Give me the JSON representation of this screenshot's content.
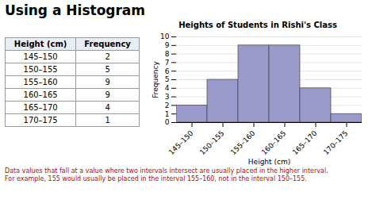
{
  "chart_data": {
    "type": "bar",
    "title": "Using a Histogram",
    "subtitle": "Heights of Students in Rishi's Class",
    "xlabel": "Height (cm)",
    "ylabel": "Frequency",
    "categories": [
      "145–150",
      "150–155",
      "155–160",
      "160–165",
      "165–170",
      "170–175"
    ],
    "values": [
      2,
      5,
      9,
      9,
      4,
      1
    ],
    "color": "#9999cc",
    "ylim": [
      0,
      10
    ],
    "yticks": [
      0,
      1,
      2,
      3,
      4,
      5,
      6,
      7,
      8,
      9,
      10
    ],
    "grid": true,
    "table": {
      "columns": [
        "Height (cm)",
        "Frequency"
      ],
      "rows": [
        [
          "145–150",
          "2"
        ],
        [
          "150–155",
          "5"
        ],
        [
          "155–160",
          "9"
        ],
        [
          "160–165",
          "9"
        ],
        [
          "165–170",
          "4"
        ],
        [
          "170–175",
          "1"
        ]
      ]
    },
    "footnote": "Data values that fall at a value where two intervals intersect are usually placed in the higher interval.\nFor example, 155 would usually be placed in the interval 155–160, not in the interval 150–155."
  }
}
